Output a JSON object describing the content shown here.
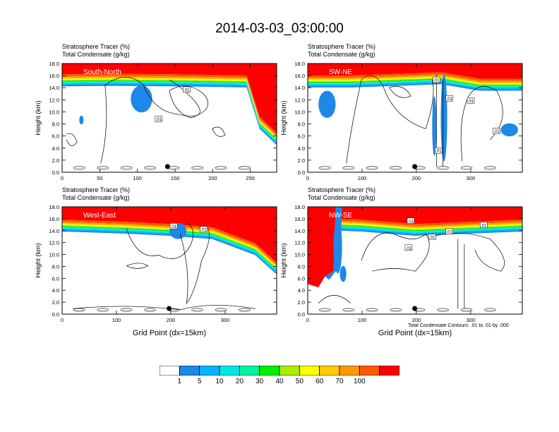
{
  "title": "2014-03-03_03:00:00",
  "subtitle_lines": [
    "Stratosphere Tracer   (%)",
    "Total Condensate   (g/kg)"
  ],
  "contour_note": "Total Condensate Contours: .01 to .01 by .000",
  "colorbar": {
    "colors": [
      "#ffffff",
      "#1e88e8",
      "#00b4ff",
      "#00e6e6",
      "#00f5a0",
      "#00ee00",
      "#a8ee00",
      "#ffff00",
      "#ffcc00",
      "#ff9900",
      "#ff5a00",
      "#ff0000"
    ],
    "labels": [
      "1",
      "5",
      "10",
      "20",
      "30",
      "40",
      "50",
      "60",
      "70",
      "100"
    ]
  },
  "chart_data": [
    {
      "type": "heatmap",
      "panel_label": "South-North",
      "ylabel": "Height (km)",
      "xlabel": "",
      "yticks": [
        "0.0",
        "2.0",
        "4.0",
        "6.0",
        "8.0",
        "10.0",
        "12.0",
        "14.0",
        "16.0",
        "18.0"
      ],
      "xticks": [
        "0",
        "50",
        "100",
        "150",
        "200",
        "250"
      ],
      "xlim": [
        0,
        285
      ],
      "ylim": [
        0,
        18
      ],
      "contour_labels": [
        ".01",
        ".01"
      ],
      "marker_x": 140
    },
    {
      "type": "heatmap",
      "panel_label": "SW-NE",
      "ylabel": "Height (km)",
      "xlabel": "",
      "yticks": [
        "0.0",
        "2.0",
        "4.0",
        "6.0",
        "8.0",
        "10.0",
        "12.0",
        "14.0",
        "16.0",
        "18.0"
      ],
      "xticks": [
        "0",
        "100",
        "200",
        "300"
      ],
      "xlim": [
        0,
        395
      ],
      "ylim": [
        0,
        18
      ],
      "contour_labels": [
        ".01",
        ".01",
        ".01",
        ".01",
        ".01"
      ],
      "marker_x": 197
    },
    {
      "type": "heatmap",
      "panel_label": "West-East",
      "ylabel": "Height (km)",
      "xlabel": "Grid Point (dx=15km)",
      "yticks": [
        "0.0",
        "2.0",
        "4.0",
        "6.0",
        "8.0",
        "10.0",
        "12.0",
        "14.0",
        "16.0",
        "18.0"
      ],
      "xticks": [
        "0",
        "100",
        "200",
        "300"
      ],
      "xlim": [
        0,
        395
      ],
      "ylim": [
        0,
        18
      ],
      "contour_labels": [
        ".01",
        ".01"
      ],
      "marker_x": 197
    },
    {
      "type": "heatmap",
      "panel_label": "NW-SE",
      "ylabel": "Height (km)",
      "xlabel": "Grid Point (dx=15km)",
      "yticks": [
        "0.0",
        "2.0",
        "4.0",
        "6.0",
        "8.0",
        "10.0",
        "12.0",
        "14.0",
        "16.0",
        "18.0"
      ],
      "xticks": [
        "0",
        "100",
        "200",
        "300"
      ],
      "xlim": [
        0,
        395
      ],
      "ylim": [
        0,
        18
      ],
      "contour_labels": [
        ".01",
        ".01",
        ".01",
        ".01",
        ".01"
      ],
      "marker_x": 197
    }
  ]
}
